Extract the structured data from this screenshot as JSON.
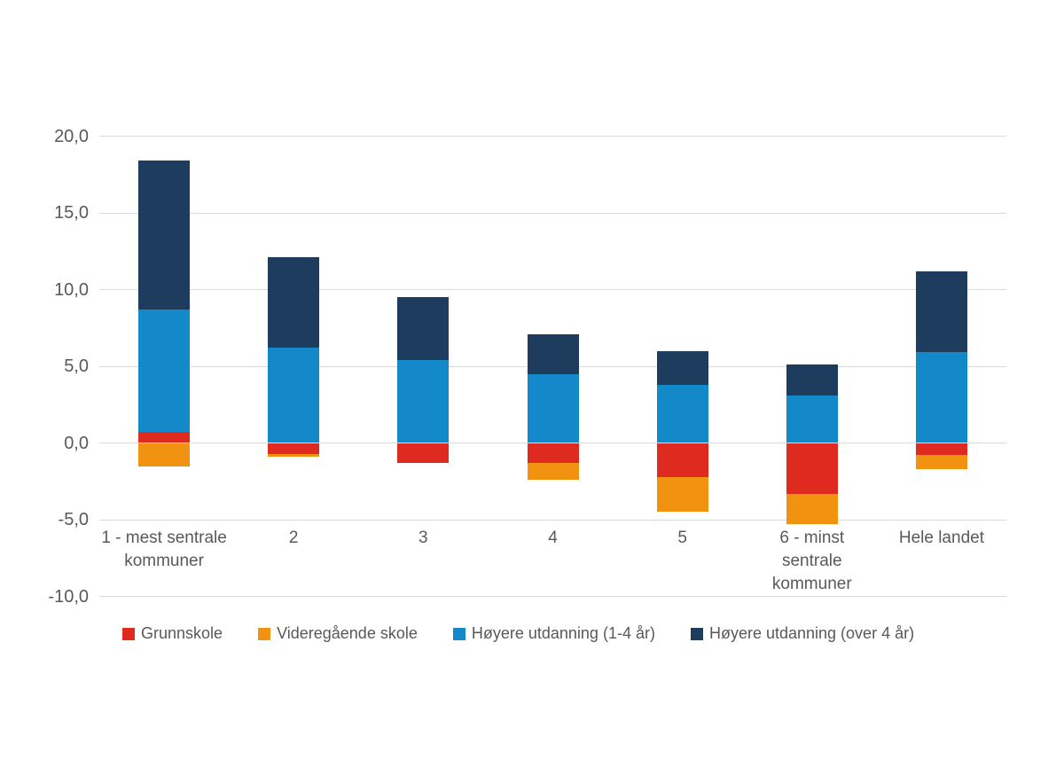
{
  "chart_data": {
    "type": "bar",
    "stacked": true,
    "title": "",
    "xlabel": "",
    "ylabel": "",
    "grid": true,
    "legend_position": "bottom",
    "ylim": [
      -10,
      20
    ],
    "y_ticks": [
      "20,0",
      "15,0",
      "10,0",
      "5,0",
      "0,0",
      "-5,0",
      "-10,0"
    ],
    "y_tick_values": [
      20,
      15,
      10,
      5,
      0,
      -5,
      -10
    ],
    "categories": [
      "1 - mest sentrale\nkommuner",
      "2",
      "3",
      "4",
      "5",
      "6 - minst\nsentrale\nkommuner",
      "Hele landet"
    ],
    "series": [
      {
        "name": "Grunnskole",
        "color": "#df2b1f",
        "values": [
          0.7,
          -0.7,
          -1.3,
          -1.3,
          -2.2,
          -3.3,
          -0.8
        ]
      },
      {
        "name": "Videregående skole",
        "color": "#f29211",
        "values": [
          -1.5,
          -0.2,
          0.0,
          -1.1,
          -2.3,
          -2.0,
          -0.9
        ]
      },
      {
        "name": "Høyere utdanning (1-4 år)",
        "color": "#1389ca",
        "values": [
          8.0,
          6.2,
          5.4,
          4.5,
          3.8,
          3.1,
          5.9
        ]
      },
      {
        "name": "Høyere utdanning (over 4 år)",
        "color": "#1d3c5e",
        "values": [
          9.7,
          5.9,
          4.1,
          2.6,
          2.2,
          2.0,
          5.3
        ]
      }
    ],
    "stack_totals_positive": [
      18.4,
      12.1,
      9.5,
      7.1,
      6.0,
      5.1,
      11.2
    ],
    "stack_totals_negative": [
      -1.5,
      -0.9,
      -1.3,
      -2.4,
      -4.5,
      -5.3,
      -1.7
    ]
  },
  "colors": {
    "background": "#ffffff",
    "gridline": "#d9d9d9",
    "text": "#595959"
  }
}
